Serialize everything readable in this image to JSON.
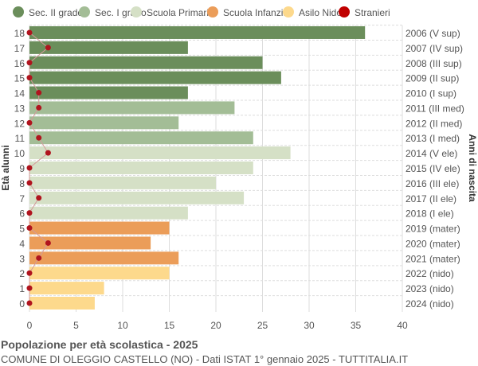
{
  "chart_data": {
    "type": "bar",
    "orientation": "horizontal",
    "title": "Popolazione per età scolastica - 2025",
    "subtitle": "COMUNE DI OLEGGIO CASTELLO (NO) - Dati ISTAT 1° gennaio 2025 - TUTTITALIA.IT",
    "ylabel": "Età alunni",
    "ylabel_right": "Anni di nascita",
    "xlim": [
      0,
      40
    ],
    "xticks": [
      0,
      5,
      10,
      15,
      20,
      25,
      30,
      35,
      40
    ],
    "grid": true,
    "legend_position": "top",
    "legend": [
      {
        "name": "Sec. II grado",
        "color": "#6b8e5b"
      },
      {
        "name": "Sec. I grado",
        "color": "#a3bd96"
      },
      {
        "name": "Scuola Primaria",
        "color": "#d5e0c6"
      },
      {
        "name": "Scuola Infanzia",
        "color": "#eb9d59"
      },
      {
        "name": "Asilo Nido",
        "color": "#fdd98c"
      },
      {
        "name": "Stranieri",
        "color": "#c00000"
      }
    ],
    "rows": [
      {
        "age": 18,
        "year": "2006 (V sup)",
        "value": 36,
        "stranieri": 0,
        "group": 0
      },
      {
        "age": 17,
        "year": "2007 (IV sup)",
        "value": 17,
        "stranieri": 2,
        "group": 0
      },
      {
        "age": 16,
        "year": "2008 (III sup)",
        "value": 25,
        "stranieri": 0,
        "group": 0
      },
      {
        "age": 15,
        "year": "2009 (II sup)",
        "value": 27,
        "stranieri": 0,
        "group": 0
      },
      {
        "age": 14,
        "year": "2010 (I sup)",
        "value": 17,
        "stranieri": 1,
        "group": 0
      },
      {
        "age": 13,
        "year": "2011 (III med)",
        "value": 22,
        "stranieri": 1,
        "group": 1
      },
      {
        "age": 12,
        "year": "2012 (II med)",
        "value": 16,
        "stranieri": 0,
        "group": 1
      },
      {
        "age": 11,
        "year": "2013 (I med)",
        "value": 24,
        "stranieri": 1,
        "group": 1
      },
      {
        "age": 10,
        "year": "2014 (V ele)",
        "value": 28,
        "stranieri": 2,
        "group": 2
      },
      {
        "age": 9,
        "year": "2015 (IV ele)",
        "value": 24,
        "stranieri": 0,
        "group": 2
      },
      {
        "age": 8,
        "year": "2016 (III ele)",
        "value": 20,
        "stranieri": 0,
        "group": 2
      },
      {
        "age": 7,
        "year": "2017 (II ele)",
        "value": 23,
        "stranieri": 1,
        "group": 2
      },
      {
        "age": 6,
        "year": "2018 (I ele)",
        "value": 17,
        "stranieri": 0,
        "group": 2
      },
      {
        "age": 5,
        "year": "2019 (mater)",
        "value": 15,
        "stranieri": 0,
        "group": 3
      },
      {
        "age": 4,
        "year": "2020 (mater)",
        "value": 13,
        "stranieri": 2,
        "group": 3
      },
      {
        "age": 3,
        "year": "2021 (mater)",
        "value": 16,
        "stranieri": 1,
        "group": 3
      },
      {
        "age": 2,
        "year": "2022 (nido)",
        "value": 15,
        "stranieri": 0,
        "group": 4
      },
      {
        "age": 1,
        "year": "2023 (nido)",
        "value": 8,
        "stranieri": 0,
        "group": 4
      },
      {
        "age": 0,
        "year": "2024 (nido)",
        "value": 7,
        "stranieri": 0,
        "group": 4
      }
    ]
  }
}
